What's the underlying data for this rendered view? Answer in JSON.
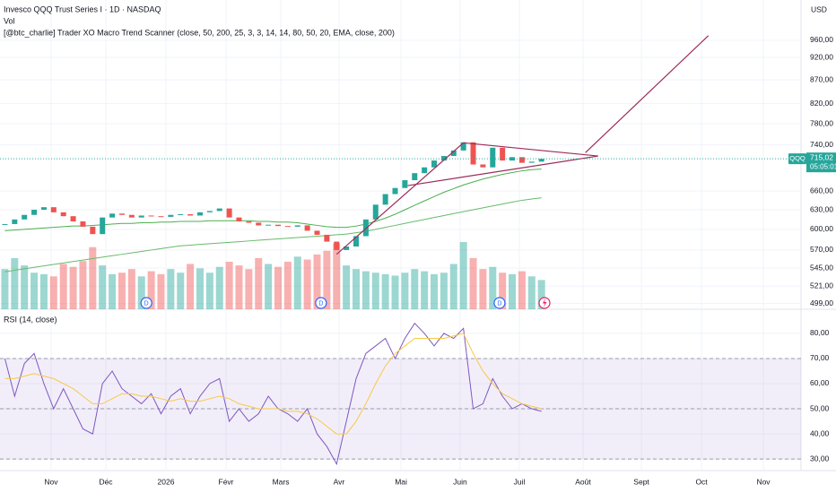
{
  "chart_data": [
    {
      "type": "candlestick",
      "title": "Invesco QQQ Trust Series I · 1D · NASDAQ",
      "indicators": [
        "Vol",
        "[@btc_charlie] Trader XO Macro Trend Scanner (close, 50, 200, 25, 3, 3, 14, 14, 80, 50, 20, EMA, close, 200)"
      ],
      "currency": "USD",
      "symbol": "QQQ",
      "last_price": {
        "value": 715.02,
        "label": "715,02"
      },
      "countdown": "05:05:01",
      "log_scale": true,
      "grid": true,
      "up_color": "#26a69a",
      "down_color": "#ef5350",
      "ylim": [
        492,
        1061
      ],
      "yticks": [
        {
          "value": 960,
          "label": "960,00"
        },
        {
          "value": 920,
          "label": "920,00"
        },
        {
          "value": 870,
          "label": "870,00"
        },
        {
          "value": 820,
          "label": "820,00"
        },
        {
          "value": 780,
          "label": "780,00"
        },
        {
          "value": 740,
          "label": "740,00"
        },
        {
          "value": 660,
          "label": "660,00"
        },
        {
          "value": 630,
          "label": "630,00"
        },
        {
          "value": 600,
          "label": "600,00"
        },
        {
          "value": 570,
          "label": "570,00"
        },
        {
          "value": 545,
          "label": "545,00"
        },
        {
          "value": 521,
          "label": "521,00"
        },
        {
          "value": 499,
          "label": "499,00"
        }
      ],
      "xlim": [
        -0.5,
        81.6
      ],
      "xticks": [
        {
          "value": 4.74,
          "label": "Nov"
        },
        {
          "value": 10.35,
          "label": "Déc"
        },
        {
          "value": 16.51,
          "label": "2026"
        },
        {
          "value": 22.67,
          "label": "Févr"
        },
        {
          "value": 28.28,
          "label": "Mars"
        },
        {
          "value": 34.25,
          "label": "Avr"
        },
        {
          "value": 40.6,
          "label": "Mai"
        },
        {
          "value": 46.66,
          "label": "Juin"
        },
        {
          "value": 52.73,
          "label": "Juil"
        },
        {
          "value": 59.26,
          "label": "Août"
        },
        {
          "value": 65.24,
          "label": "Sept"
        },
        {
          "value": 71.4,
          "label": "Oct"
        },
        {
          "value": 77.74,
          "label": "Nov"
        }
      ],
      "values": [
        608,
        615,
        622,
        630,
        634,
        626,
        620,
        612,
        604,
        593,
        618,
        624,
        622,
        618,
        621,
        620,
        619,
        622,
        623,
        621,
        626,
        628,
        632,
        618,
        612,
        610,
        606,
        607,
        605,
        604,
        606,
        598,
        592,
        582,
        570,
        575,
        590,
        615,
        638,
        655,
        665,
        678,
        690,
        700,
        712,
        720,
        730,
        745,
        705,
        700,
        735,
        712,
        718,
        708,
        710,
        715
      ],
      "volume": [
        55,
        70,
        60,
        50,
        48,
        45,
        62,
        58,
        66,
        85,
        60,
        48,
        50,
        55,
        45,
        52,
        48,
        55,
        50,
        62,
        56,
        50,
        58,
        65,
        60,
        55,
        70,
        62,
        58,
        65,
        72,
        68,
        75,
        80,
        90,
        60,
        55,
        52,
        50,
        48,
        46,
        50,
        55,
        52,
        48,
        50,
        62,
        92,
        70,
        55,
        58,
        50,
        48,
        52,
        45,
        40
      ],
      "lines": [
        {
          "color": "#4caf50",
          "values": [
            598,
            599,
            600,
            601,
            602,
            603,
            604,
            605,
            605,
            606,
            607,
            608,
            609,
            609,
            610,
            610,
            611,
            611,
            612,
            612,
            612,
            613,
            613,
            613,
            613,
            613,
            612,
            612,
            611,
            611,
            610,
            608,
            606,
            604,
            603,
            603,
            605,
            608,
            612,
            617,
            623,
            630,
            637,
            644,
            651,
            658,
            664,
            670,
            675,
            680,
            684,
            688,
            691,
            694,
            696,
            697
          ]
        },
        {
          "color": "#66bb6a",
          "values": [
            540,
            542,
            544,
            546,
            548,
            550,
            552,
            554,
            556,
            558,
            560,
            562,
            564,
            566,
            568,
            570,
            572,
            574,
            576,
            577,
            578,
            579,
            580,
            581,
            582,
            583,
            584,
            585,
            586,
            587,
            588,
            589,
            590,
            591,
            592,
            593,
            595,
            597,
            600,
            603,
            606,
            609,
            612,
            615,
            618,
            621,
            624,
            627,
            630,
            633,
            636,
            639,
            642,
            645,
            647,
            649
          ]
        }
      ],
      "drawings": [
        {
          "color": "#9c2b5a",
          "x": [
            34.0,
            47.0
          ],
          "y": [
            564,
            744
          ]
        },
        {
          "color": "#9c2b5a",
          "x": [
            47.0,
            60.8
          ],
          "y": [
            744,
            720
          ]
        },
        {
          "color": "#9c2b5a",
          "x": [
            41.3,
            60.8
          ],
          "y": [
            669,
            720
          ]
        },
        {
          "color": "#9c2b5a",
          "x": [
            59.5,
            72.1
          ],
          "y": [
            726,
            971
          ]
        }
      ],
      "events": [
        {
          "x": 14.5,
          "label": "D"
        },
        {
          "x": 32.4,
          "label": "D"
        },
        {
          "x": 50.7,
          "label": "D"
        }
      ]
    },
    {
      "type": "line",
      "title": "RSI (14, close)",
      "ylim": [
        25.4,
        89.6
      ],
      "yticks": [
        {
          "value": 80,
          "label": "80,00"
        },
        {
          "value": 70,
          "label": "70,00"
        },
        {
          "value": 60,
          "label": "60,00"
        },
        {
          "value": 50,
          "label": "50,00"
        },
        {
          "value": 40,
          "label": "40,00"
        },
        {
          "value": 30,
          "label": "30,00"
        }
      ],
      "levels": [
        70,
        50,
        30
      ],
      "band_color": "#7e57c2",
      "series": [
        {
          "color": "#7e57c2",
          "values": [
            70,
            55,
            68,
            72,
            60,
            50,
            58,
            50,
            42,
            40,
            60,
            65,
            58,
            55,
            52,
            56,
            48,
            55,
            58,
            48,
            55,
            60,
            62,
            45,
            50,
            45,
            48,
            55,
            50,
            48,
            45,
            50,
            40,
            35,
            28,
            45,
            62,
            72,
            75,
            78,
            70,
            78,
            84,
            80,
            75,
            80,
            78,
            82,
            50,
            52,
            62,
            55,
            50,
            52,
            50,
            49
          ]
        },
        {
          "color": "#f7c948",
          "values": [
            62,
            62,
            63,
            64,
            63,
            62,
            60,
            58,
            55,
            52,
            52,
            54,
            56,
            56,
            55,
            55,
            54,
            53,
            54,
            53,
            53,
            54,
            55,
            54,
            52,
            51,
            50,
            50,
            50,
            49,
            49,
            48,
            46,
            43,
            40,
            40,
            45,
            52,
            60,
            67,
            72,
            75,
            78,
            78,
            78,
            78,
            79,
            80,
            72,
            65,
            60,
            56,
            54,
            52,
            51,
            50
          ]
        }
      ]
    }
  ]
}
